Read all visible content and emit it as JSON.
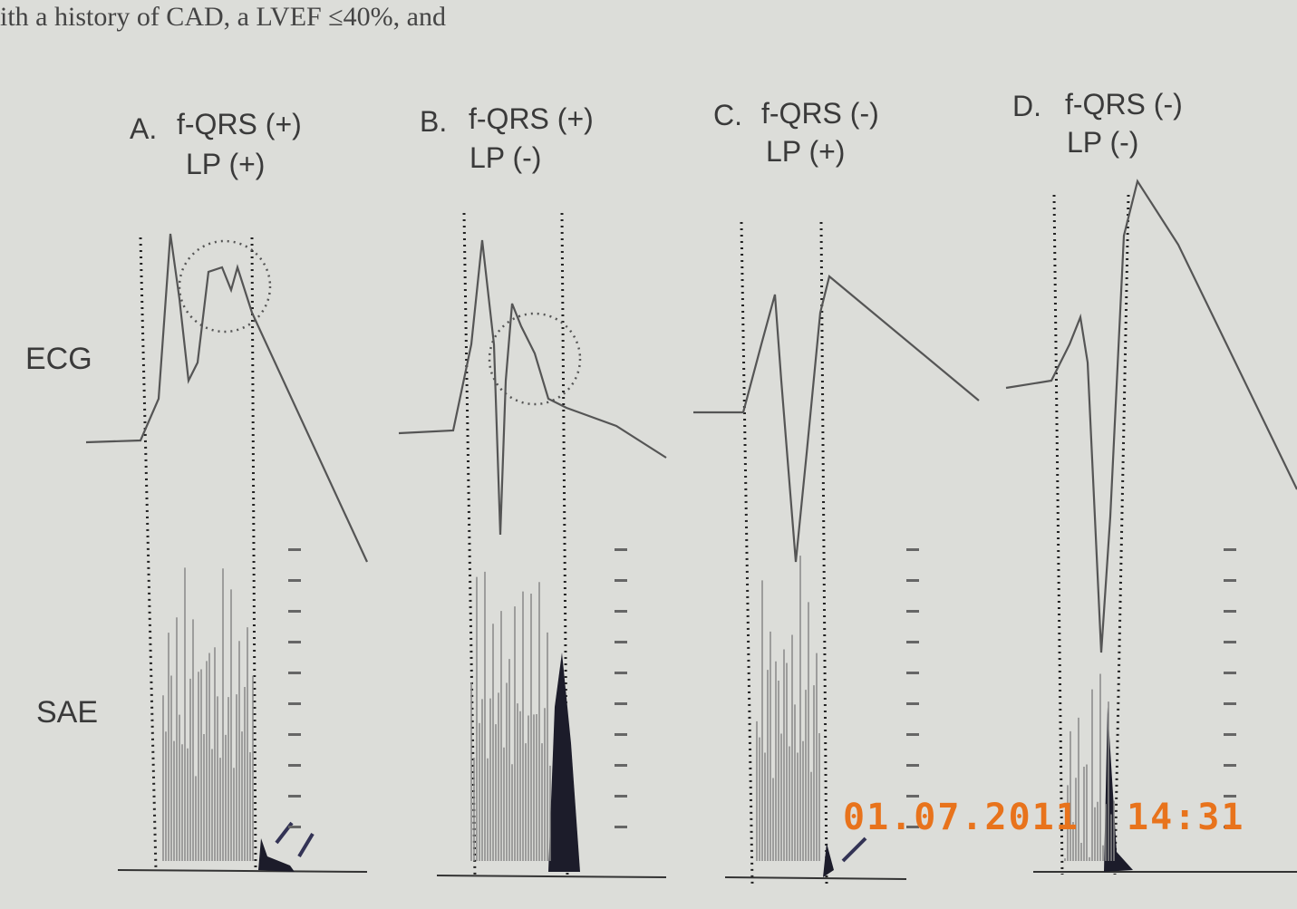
{
  "header_fragment": "ith a history of CAD, a LVEF ≤40%, and",
  "panels": [
    {
      "letter": "A.",
      "line1": "f-QRS (+)",
      "line2": "LP (+)"
    },
    {
      "letter": "B.",
      "line1": "f-QRS (+)",
      "line2": "LP (-)"
    },
    {
      "letter": "C.",
      "line1": "f-QRS (-)",
      "line2": "LP (+)"
    },
    {
      "letter": "D.",
      "line1": "f-QRS (-)",
      "line2": "LP (-)"
    }
  ],
  "row_labels": [
    "ECG",
    "SAE"
  ],
  "timestamp": "01.07.2011  14:31"
}
